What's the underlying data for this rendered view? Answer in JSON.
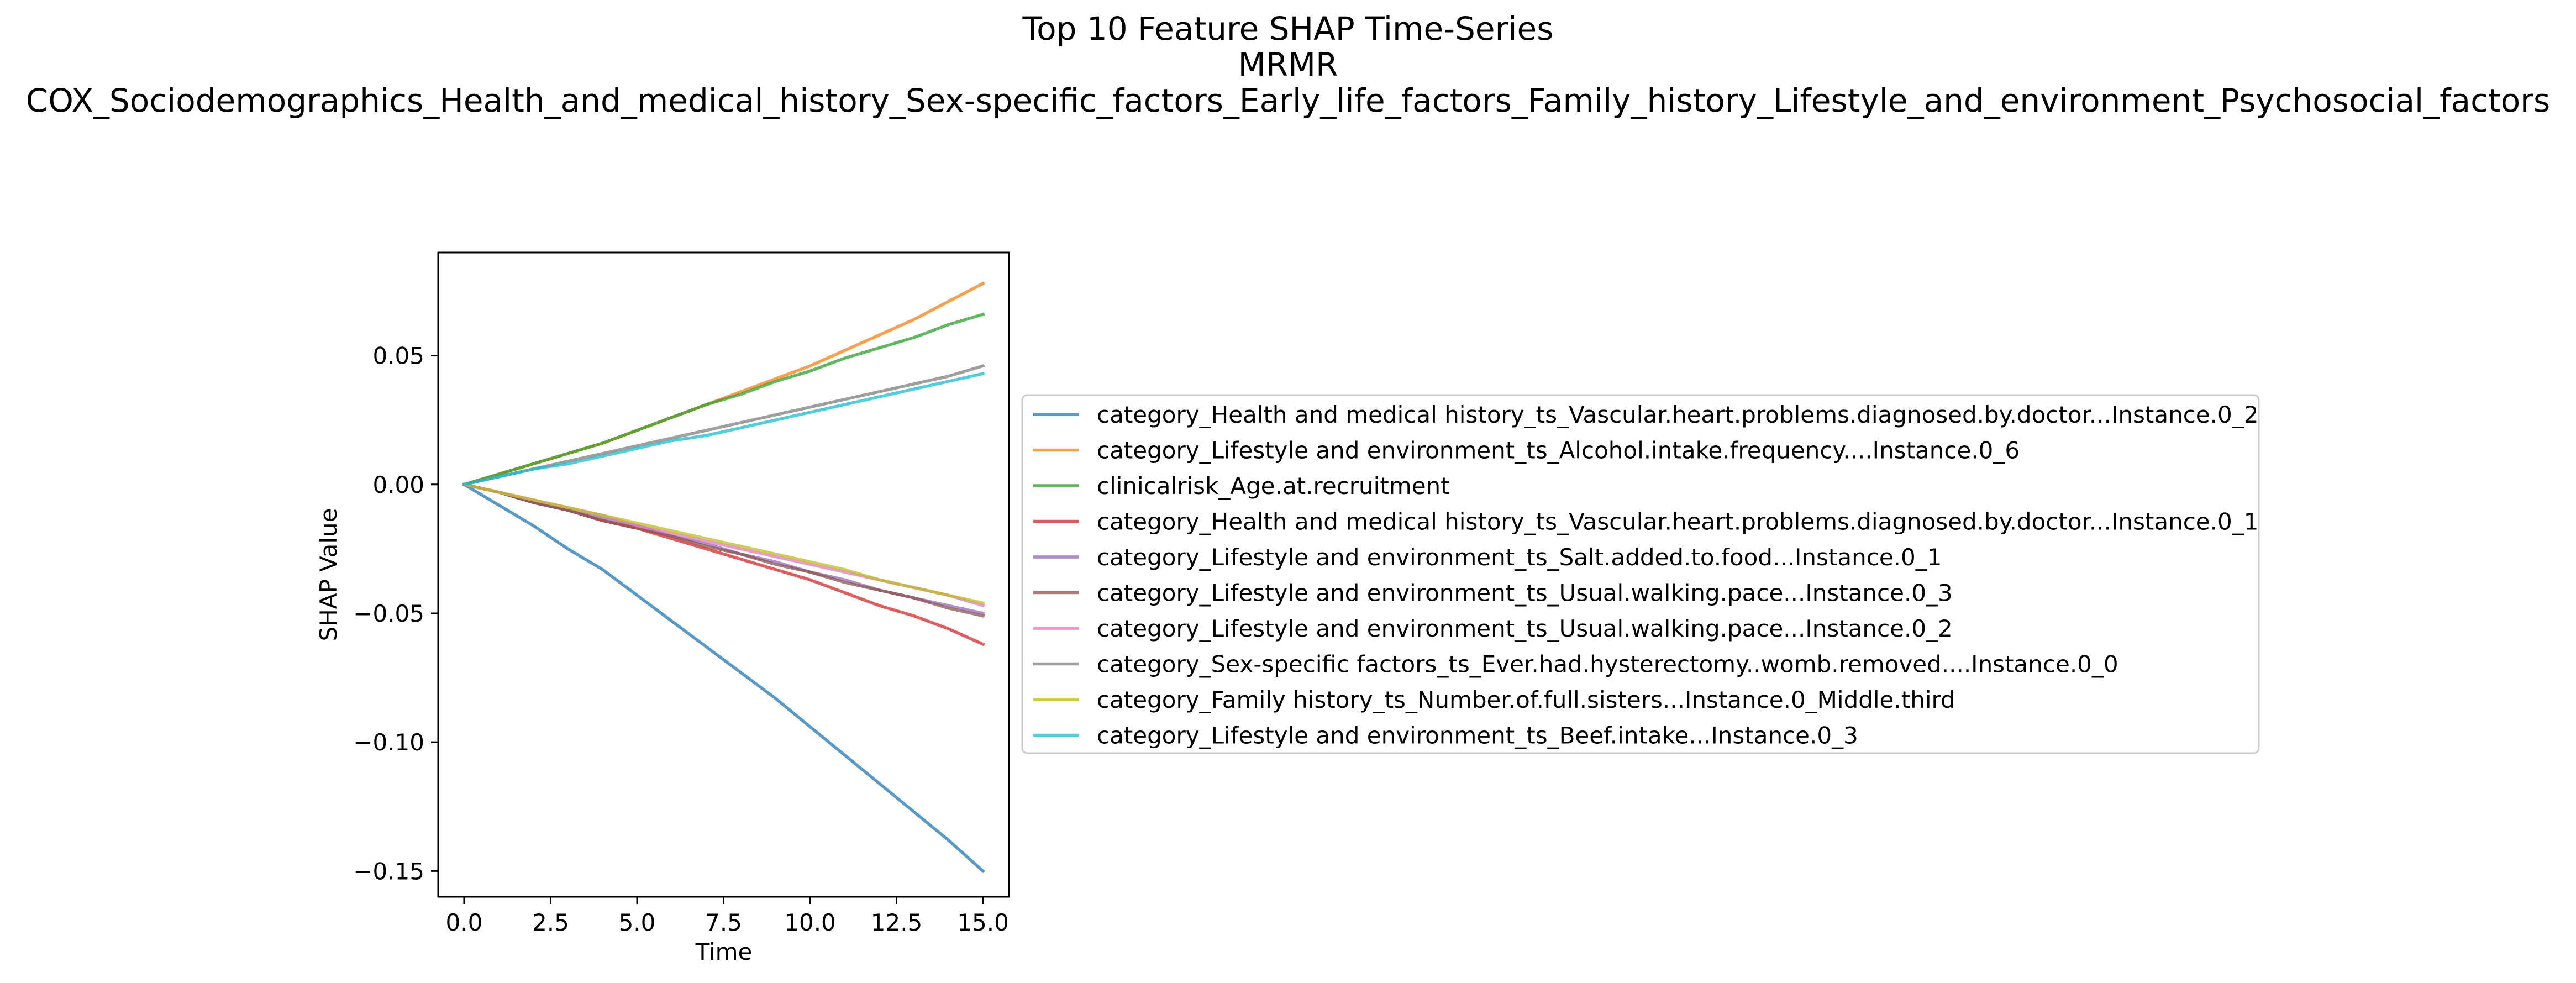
{
  "chart_data": {
    "type": "line",
    "title_lines": [
      "Top 10 Feature SHAP Time-Series",
      "MRMR",
      "COX_Sociodemographics_Health_and_medical_history_Sex-specific_factors_Early_life_factors_Family_history_Lifestyle_and_environment_Psychosocial_factors"
    ],
    "xlabel": "Time",
    "ylabel": "SHAP Value",
    "xlim": [
      -0.75,
      15.75
    ],
    "ylim": [
      -0.16,
      0.09
    ],
    "xticks": [
      0.0,
      2.5,
      5.0,
      7.5,
      10.0,
      12.5,
      15.0
    ],
    "xtick_labels": [
      "0.0",
      "2.5",
      "5.0",
      "7.5",
      "10.0",
      "12.5",
      "15.0"
    ],
    "yticks": [
      0.05,
      0.0,
      -0.05,
      -0.1,
      -0.15
    ],
    "ytick_labels": [
      "0.05",
      "0.00",
      "−0.05",
      "−0.10",
      "−0.15"
    ],
    "grid": false,
    "legend_position": "right of plot",
    "x": [
      0,
      1,
      2,
      3,
      4,
      5,
      6,
      7,
      8,
      9,
      10,
      11,
      12,
      13,
      14,
      15
    ],
    "series": [
      {
        "name": "category_Health and medical history_ts_Vascular.heart.problems.diagnosed.by.doctor...Instance.0_2",
        "color": "#1f77b4",
        "values": [
          0.0,
          -0.008,
          -0.016,
          -0.025,
          -0.033,
          -0.043,
          -0.053,
          -0.063,
          -0.073,
          -0.083,
          -0.094,
          -0.105,
          -0.116,
          -0.127,
          -0.138,
          -0.15
        ]
      },
      {
        "name": "category_Lifestyle and environment_ts_Alcohol.intake.frequency....Instance.0_6",
        "color": "#ff7f0e",
        "values": [
          0.0,
          0.004,
          0.008,
          0.012,
          0.016,
          0.021,
          0.026,
          0.031,
          0.036,
          0.041,
          0.046,
          0.052,
          0.058,
          0.064,
          0.071,
          0.078
        ]
      },
      {
        "name": "clinicalrisk_Age.at.recruitment",
        "color": "#2ca02c",
        "values": [
          0.0,
          0.004,
          0.008,
          0.012,
          0.016,
          0.021,
          0.026,
          0.031,
          0.035,
          0.04,
          0.044,
          0.049,
          0.053,
          0.057,
          0.062,
          0.066
        ]
      },
      {
        "name": "category_Health and medical history_ts_Vascular.heart.problems.diagnosed.by.doctor...Instance.0_1",
        "color": "#d62728",
        "values": [
          0.0,
          -0.003,
          -0.007,
          -0.01,
          -0.014,
          -0.017,
          -0.021,
          -0.025,
          -0.029,
          -0.033,
          -0.037,
          -0.042,
          -0.047,
          -0.051,
          -0.056,
          -0.062
        ]
      },
      {
        "name": "category_Lifestyle and environment_ts_Salt.added.to.food...Instance.0_1",
        "color": "#9467bd",
        "values": [
          0.0,
          -0.003,
          -0.007,
          -0.01,
          -0.013,
          -0.016,
          -0.02,
          -0.023,
          -0.027,
          -0.03,
          -0.034,
          -0.037,
          -0.041,
          -0.044,
          -0.047,
          -0.05
        ]
      },
      {
        "name": "category_Lifestyle and environment_ts_Usual.walking.pace...Instance.0_3",
        "color": "#8c564b",
        "values": [
          0.0,
          -0.003,
          -0.007,
          -0.01,
          -0.014,
          -0.017,
          -0.02,
          -0.024,
          -0.027,
          -0.031,
          -0.034,
          -0.038,
          -0.041,
          -0.044,
          -0.048,
          -0.051
        ]
      },
      {
        "name": "category_Lifestyle and environment_ts_Usual.walking.pace...Instance.0_2",
        "color": "#e377c2",
        "values": [
          0.0,
          -0.003,
          -0.006,
          -0.009,
          -0.012,
          -0.016,
          -0.019,
          -0.022,
          -0.025,
          -0.028,
          -0.031,
          -0.034,
          -0.037,
          -0.04,
          -0.043,
          -0.047
        ]
      },
      {
        "name": "category_Sex-specific factors_ts_Ever.had.hysterectomy..womb.removed....Instance.0_0",
        "color": "#7f7f7f",
        "values": [
          0.0,
          0.003,
          0.006,
          0.009,
          0.012,
          0.015,
          0.018,
          0.021,
          0.024,
          0.027,
          0.03,
          0.033,
          0.036,
          0.039,
          0.042,
          0.046
        ]
      },
      {
        "name": "category_Family history_ts_Number.of.full.sisters...Instance.0_Middle.third",
        "color": "#bcbd22",
        "values": [
          0.0,
          -0.003,
          -0.006,
          -0.009,
          -0.012,
          -0.015,
          -0.018,
          -0.021,
          -0.024,
          -0.027,
          -0.03,
          -0.033,
          -0.037,
          -0.04,
          -0.043,
          -0.046
        ]
      },
      {
        "name": "category_Lifestyle and environment_ts_Beef.intake...Instance.0_3",
        "color": "#17becf",
        "values": [
          0.0,
          0.003,
          0.006,
          0.008,
          0.011,
          0.014,
          0.017,
          0.019,
          0.022,
          0.025,
          0.028,
          0.031,
          0.034,
          0.037,
          0.04,
          0.043
        ]
      }
    ]
  }
}
